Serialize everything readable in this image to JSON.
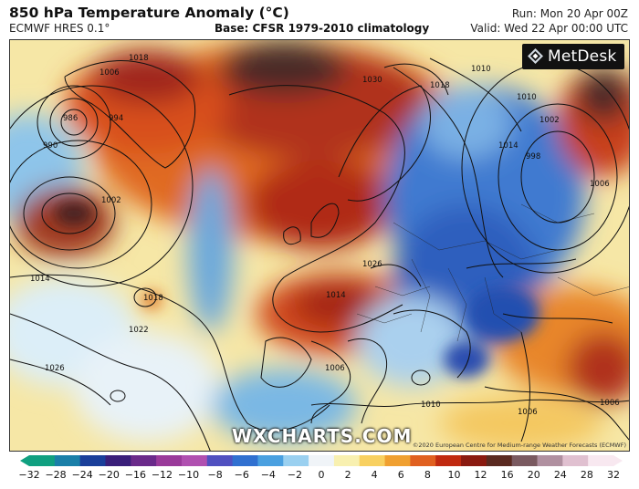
{
  "header": {
    "title": "850 hPa Temperature Anomaly (°C)",
    "model": "ECMWF HRES 0.1°",
    "base": "Base: CFSR 1979-2010 climatology",
    "run": "Run: Mon 20 Apr 00Z",
    "valid": "Valid: Wed 22 Apr 00:00 UTC"
  },
  "logo": {
    "text": "MetDesk",
    "icon": "metdesk-logo-icon"
  },
  "watermark": "WXCHARTS.COM",
  "credit": "©2020 European Centre for Medium-range Weather Forecasts (ECMWF)",
  "isobar_labels": [
    "986",
    "990",
    "994",
    "1006",
    "1002",
    "1014",
    "1018",
    "1018",
    "1022",
    "1026",
    "1030",
    "1018",
    "1010",
    "1014",
    "998",
    "1002",
    "1010",
    "1006",
    "1026",
    "1014",
    "1006",
    "1010",
    "1006",
    "1006"
  ],
  "colorbar": {
    "ticks": [
      "−32",
      "−28",
      "−24",
      "−20",
      "−16",
      "−12",
      "−10",
      "−8",
      "−6",
      "−4",
      "−2",
      "0",
      "2",
      "4",
      "6",
      "8",
      "10",
      "12",
      "16",
      "20",
      "24",
      "28",
      "32"
    ],
    "colors": [
      "#10a080",
      "#1a7fa8",
      "#1a3f9a",
      "#3a1f7a",
      "#6a2a8a",
      "#9a3a9a",
      "#b050b0",
      "#5050c0",
      "#3070d0",
      "#4aa0e0",
      "#9ad0f0",
      "#f0f4f8",
      "#f8f0b0",
      "#f8d060",
      "#f0a030",
      "#e06020",
      "#c02a10",
      "#8a1a10",
      "#5a2a20",
      "#7a5a60",
      "#b090a0",
      "#e0c0d0",
      "#f8e8f0"
    ]
  }
}
